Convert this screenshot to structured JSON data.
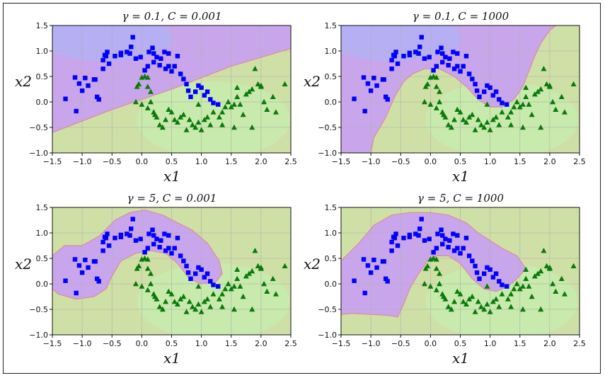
{
  "chart_data": [
    {
      "type": "scatter",
      "title": "γ = 0.1, C = 0.001",
      "xlabel": "x1",
      "ylabel": "x2",
      "xlim": [
        -1.5,
        2.5
      ],
      "ylim": [
        -1.0,
        1.5
      ],
      "xticks": [
        "−1.5",
        "−1.0",
        "−0.5",
        "0.0",
        "0.5",
        "1.0",
        "1.5",
        "2.0",
        "2.5"
      ],
      "yticks": [
        "−1.0",
        "−0.5",
        "0.0",
        "0.5",
        "1.0",
        "1.5"
      ],
      "grid": true,
      "boundary": [
        [
          -1.5,
          -0.6
        ],
        [
          -0.5,
          -0.15
        ],
        [
          0.5,
          0.25
        ],
        [
          1.5,
          0.7
        ],
        [
          2.5,
          1.05
        ]
      ]
    },
    {
      "type": "scatter",
      "title": "γ = 0.1, C = 1000",
      "xlabel": "x1",
      "ylabel": "x2",
      "xlim": [
        -1.5,
        2.5
      ],
      "ylim": [
        -1.0,
        1.5
      ],
      "xticks": [
        "−1.5",
        "−1.0",
        "−0.5",
        "0.0",
        "0.5",
        "1.0",
        "1.5",
        "2.0",
        "2.5"
      ],
      "yticks": [
        "−1.0",
        "−0.5",
        "0.0",
        "0.5",
        "1.0",
        "1.5"
      ],
      "grid": true,
      "boundary": [
        [
          -1.0,
          -1.0
        ],
        [
          -0.95,
          -0.7
        ],
        [
          -0.75,
          -0.3
        ],
        [
          -0.6,
          0.1
        ],
        [
          -0.45,
          0.4
        ],
        [
          -0.3,
          0.55
        ],
        [
          -0.1,
          0.65
        ],
        [
          0.15,
          0.65
        ],
        [
          0.4,
          0.5
        ],
        [
          0.6,
          0.3
        ],
        [
          0.8,
          0.05
        ],
        [
          1.0,
          -0.1
        ],
        [
          1.2,
          -0.1
        ],
        [
          1.4,
          0.05
        ],
        [
          1.55,
          0.3
        ],
        [
          1.65,
          0.6
        ],
        [
          1.75,
          0.9
        ],
        [
          1.85,
          1.15
        ],
        [
          2.0,
          1.4
        ],
        [
          2.1,
          1.5
        ]
      ]
    },
    {
      "type": "scatter",
      "title": "γ = 5, C = 0.001",
      "xlabel": "x1",
      "ylabel": "x2",
      "xlim": [
        -1.5,
        2.5
      ],
      "ylim": [
        -1.0,
        1.5
      ],
      "xticks": [
        "−1.5",
        "−1.0",
        "−0.5",
        "0.0",
        "0.5",
        "1.0",
        "1.5",
        "2.0",
        "2.5"
      ],
      "yticks": [
        "−1.0",
        "−0.5",
        "0.0",
        "0.5",
        "1.0",
        "1.5"
      ],
      "grid": true,
      "boundary": [
        [
          -1.5,
          0.55
        ],
        [
          -1.3,
          0.75
        ],
        [
          -1.0,
          0.75
        ],
        [
          -0.7,
          0.95
        ],
        [
          -0.45,
          1.25
        ],
        [
          -0.2,
          1.4
        ],
        [
          0.05,
          1.45
        ],
        [
          0.35,
          1.35
        ],
        [
          0.6,
          1.2
        ],
        [
          0.85,
          1.05
        ],
        [
          1.1,
          0.8
        ],
        [
          1.3,
          0.45
        ],
        [
          1.35,
          0.2
        ],
        [
          1.25,
          0.05
        ],
        [
          1.0,
          0.0
        ],
        [
          0.8,
          0.1
        ],
        [
          0.6,
          0.4
        ],
        [
          0.4,
          0.6
        ],
        [
          0.15,
          0.65
        ],
        [
          -0.1,
          0.6
        ],
        [
          -0.35,
          0.45
        ],
        [
          -0.5,
          0.15
        ],
        [
          -0.6,
          -0.1
        ],
        [
          -0.8,
          -0.25
        ],
        [
          -1.1,
          -0.3
        ],
        [
          -1.4,
          -0.2
        ],
        [
          -1.5,
          -0.1
        ]
      ]
    },
    {
      "type": "scatter",
      "title": "γ = 5, C = 1000",
      "xlabel": "x1",
      "ylabel": "x2",
      "xlim": [
        -1.5,
        2.5
      ],
      "ylim": [
        -1.0,
        1.5
      ],
      "xticks": [
        "−1.5",
        "−1.0",
        "−0.5",
        "0.0",
        "0.5",
        "1.0",
        "1.5",
        "2.0",
        "2.5"
      ],
      "yticks": [
        "−1.0",
        "−0.5",
        "0.0",
        "0.5",
        "1.0",
        "1.5"
      ],
      "grid": true,
      "boundary": [
        [
          -1.5,
          0.45
        ],
        [
          -1.2,
          0.8
        ],
        [
          -0.95,
          1.15
        ],
        [
          -0.65,
          1.35
        ],
        [
          -0.35,
          1.4
        ],
        [
          0.0,
          1.4
        ],
        [
          0.3,
          1.35
        ],
        [
          0.6,
          1.2
        ],
        [
          0.8,
          1.0
        ],
        [
          1.0,
          0.85
        ],
        [
          1.2,
          0.7
        ],
        [
          1.45,
          0.55
        ],
        [
          1.6,
          0.3
        ],
        [
          1.45,
          0.1
        ],
        [
          1.3,
          -0.05
        ],
        [
          1.1,
          -0.15
        ],
        [
          0.9,
          -0.1
        ],
        [
          0.7,
          0.1
        ],
        [
          0.5,
          0.4
        ],
        [
          0.3,
          0.55
        ],
        [
          0.1,
          0.55
        ],
        [
          -0.05,
          0.45
        ],
        [
          -0.2,
          0.2
        ],
        [
          -0.35,
          -0.1
        ],
        [
          -0.45,
          -0.4
        ],
        [
          -0.55,
          -0.65
        ],
        [
          -0.7,
          -0.62
        ],
        [
          -1.0,
          -0.6
        ],
        [
          -1.3,
          -0.58
        ],
        [
          -1.5,
          -0.6
        ]
      ]
    }
  ],
  "points": {
    "class0_squares": [
      [
        -1.28,
        0.06
      ],
      [
        -1.12,
        0.48
      ],
      [
        -1.05,
        0.36
      ],
      [
        -1.0,
        0.22
      ],
      [
        -0.95,
        0.47
      ],
      [
        -0.9,
        0.32
      ],
      [
        -0.8,
        0.44
      ],
      [
        -0.78,
        0.44
      ],
      [
        -0.75,
        0.1
      ],
      [
        -0.65,
        0.82
      ],
      [
        -0.65,
        0.65
      ],
      [
        -0.62,
        0.92
      ],
      [
        -0.6,
        0.9
      ],
      [
        -0.58,
        0.98
      ],
      [
        -0.55,
        0.75
      ],
      [
        -0.45,
        0.9
      ],
      [
        -0.35,
        0.92
      ],
      [
        -0.25,
        0.98
      ],
      [
        -0.2,
        0.95
      ],
      [
        -0.18,
        1.08
      ],
      [
        -0.1,
        0.85
      ],
      [
        -0.02,
        0.88
      ],
      [
        0.05,
        0.62
      ],
      [
        0.1,
        0.7
      ],
      [
        0.12,
        0.98
      ],
      [
        0.18,
        1.06
      ],
      [
        0.2,
        0.78
      ],
      [
        0.25,
        0.88
      ],
      [
        0.3,
        0.72
      ],
      [
        0.32,
        0.85
      ],
      [
        0.38,
        0.98
      ],
      [
        0.4,
        0.65
      ],
      [
        0.45,
        0.7
      ],
      [
        0.5,
        0.6
      ],
      [
        0.55,
        0.7
      ],
      [
        0.6,
        0.9
      ],
      [
        0.65,
        0.55
      ],
      [
        0.7,
        0.45
      ],
      [
        0.75,
        0.35
      ],
      [
        0.78,
        0.22
      ],
      [
        0.82,
        0.1
      ],
      [
        0.9,
        0.2
      ],
      [
        0.95,
        0.32
      ],
      [
        1.0,
        0.28
      ],
      [
        1.05,
        0.13
      ],
      [
        1.1,
        0.2
      ],
      [
        1.15,
        0.05
      ],
      [
        1.2,
        -0.02
      ],
      [
        -1.1,
        -0.18
      ],
      [
        -0.72,
        0.05
      ],
      [
        -0.35,
        0.96
      ],
      [
        -0.15,
        1.27
      ],
      [
        0.45,
        0.95
      ],
      [
        0.2,
        0.95
      ],
      [
        1.28,
        -0.05
      ]
    ],
    "class1_triangles": [
      [
        0.0,
        0.48
      ],
      [
        0.05,
        0.5
      ],
      [
        0.1,
        0.48
      ],
      [
        -0.05,
        0.35
      ],
      [
        0.1,
        0.3
      ],
      [
        -0.1,
        0.0
      ],
      [
        0.0,
        -0.05
      ],
      [
        0.1,
        -0.12
      ],
      [
        0.15,
        0.0
      ],
      [
        0.2,
        -0.2
      ],
      [
        0.25,
        -0.3
      ],
      [
        0.3,
        -0.45
      ],
      [
        0.35,
        -0.5
      ],
      [
        0.4,
        -0.35
      ],
      [
        0.45,
        -0.15
      ],
      [
        0.5,
        -0.2
      ],
      [
        0.55,
        -0.35
      ],
      [
        0.6,
        -0.4
      ],
      [
        0.65,
        -0.3
      ],
      [
        0.7,
        -0.25
      ],
      [
        0.75,
        -0.55
      ],
      [
        0.8,
        -0.35
      ],
      [
        0.85,
        -0.45
      ],
      [
        0.9,
        -0.5
      ],
      [
        0.95,
        -0.4
      ],
      [
        1.0,
        -0.55
      ],
      [
        1.05,
        -0.35
      ],
      [
        1.1,
        -0.3
      ],
      [
        1.15,
        -0.45
      ],
      [
        1.2,
        -0.2
      ],
      [
        1.3,
        -0.3
      ],
      [
        1.35,
        -0.2
      ],
      [
        1.4,
        -0.1
      ],
      [
        1.45,
        0.0
      ],
      [
        1.5,
        -0.1
      ],
      [
        1.55,
        -0.05
      ],
      [
        1.6,
        0.1
      ],
      [
        1.65,
        -0.05
      ],
      [
        1.7,
        -0.25
      ],
      [
        1.75,
        0.15
      ],
      [
        1.8,
        0.2
      ],
      [
        1.85,
        0.25
      ],
      [
        1.9,
        0.65
      ],
      [
        1.95,
        0.35
      ],
      [
        2.0,
        0.3
      ],
      [
        2.05,
        0.0
      ],
      [
        2.1,
        -0.15
      ],
      [
        2.2,
        0.1
      ],
      [
        2.25,
        -0.2
      ],
      [
        2.4,
        0.35
      ],
      [
        1.85,
        -0.5
      ],
      [
        1.55,
        -0.5
      ],
      [
        1.35,
        -0.45
      ],
      [
        0.95,
        -0.05
      ],
      [
        0.22,
        -0.25
      ],
      [
        -0.08,
        0.3
      ],
      [
        0.15,
        0.2
      ],
      [
        1.6,
        0.28
      ],
      [
        2.0,
        0.32
      ]
    ]
  }
}
